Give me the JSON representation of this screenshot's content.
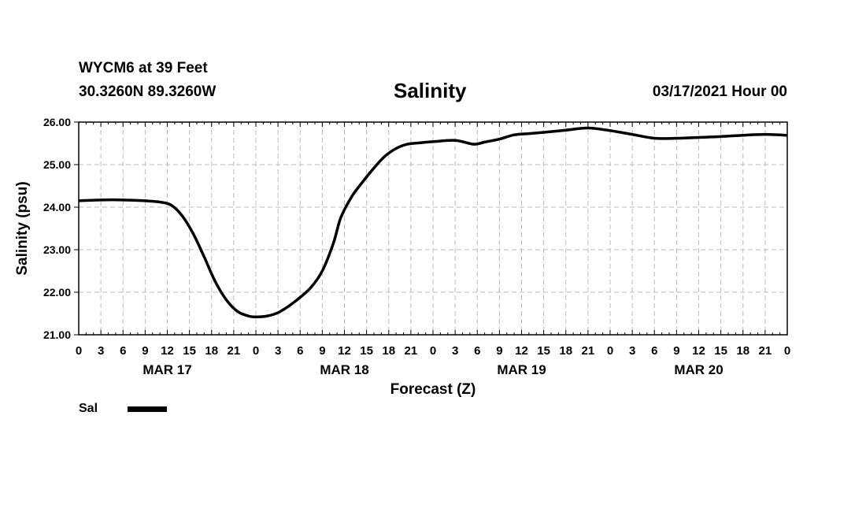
{
  "header": {
    "station": "WYCM6 at 39 Feet",
    "coords": "30.3260N 89.3260W",
    "title": "Salinity",
    "date": "03/17/2021 Hour 00"
  },
  "legend": {
    "label": "Sal",
    "color": "#000000"
  },
  "chart_data": {
    "type": "line",
    "title": "Salinity",
    "xlabel": "Forecast (Z)",
    "ylabel": "Salinity (psu)",
    "ylim": [
      21,
      26
    ],
    "yticks": [
      "21.00",
      "22.00",
      "23.00",
      "24.00",
      "25.00",
      "26.00"
    ],
    "x_unit": "hours from 03/17/2021 00Z",
    "xlim": [
      0,
      96
    ],
    "xtick_labels": [
      "0",
      "3",
      "6",
      "9",
      "12",
      "15",
      "18",
      "21",
      "0",
      "3",
      "6",
      "9",
      "12",
      "15",
      "18",
      "21",
      "0",
      "3",
      "6",
      "9",
      "12",
      "15",
      "18",
      "21",
      "0",
      "3",
      "6",
      "9",
      "12",
      "15",
      "18",
      "21",
      "0"
    ],
    "day_labels": [
      "MAR 17",
      "MAR 18",
      "MAR 19",
      "MAR 20"
    ],
    "grid": true,
    "series": [
      {
        "name": "Sal",
        "x": [
          0,
          3,
          6,
          9,
          11,
          12.5,
          14,
          15.5,
          17,
          18.5,
          20,
          21.5,
          23,
          24,
          25.5,
          27,
          28.5,
          30,
          31.5,
          33,
          34.5,
          35.5,
          37,
          38.5,
          40,
          41.5,
          43,
          44.5,
          46,
          48,
          51,
          53.5,
          55,
          57,
          59,
          61,
          63,
          66,
          69,
          72,
          75,
          78,
          81,
          84,
          87,
          90,
          93,
          96
        ],
        "y": [
          24.15,
          24.17,
          24.17,
          24.15,
          24.12,
          24.05,
          23.8,
          23.38,
          22.83,
          22.25,
          21.82,
          21.55,
          21.44,
          21.42,
          21.44,
          21.52,
          21.68,
          21.88,
          22.12,
          22.5,
          23.15,
          23.75,
          24.25,
          24.6,
          24.92,
          25.2,
          25.38,
          25.48,
          25.51,
          25.54,
          25.57,
          25.48,
          25.53,
          25.6,
          25.7,
          25.73,
          25.76,
          25.81,
          25.86,
          25.8,
          25.71,
          25.62,
          25.62,
          25.64,
          25.66,
          25.69,
          25.71,
          25.69
        ]
      }
    ]
  }
}
